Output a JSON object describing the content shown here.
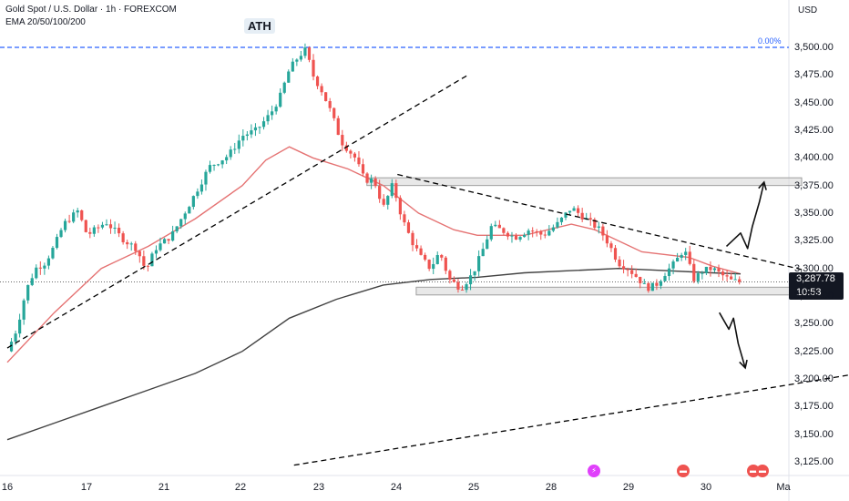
{
  "header": {
    "title": "Gold Spot / U.S. Dollar · 1h · FOREXCOM",
    "indicator": "EMA 20/50/100/200"
  },
  "price_axis": {
    "currency": "USD",
    "last_price": "3,287.78",
    "countdown": "10:53",
    "pct_label": "0.00%"
  },
  "annotations": {
    "ath_label": "ATH"
  },
  "colors": {
    "bull": "#26a69a",
    "bear": "#ef5350",
    "ema_short": "#e57373",
    "ema_long": "#424242",
    "ath_line": "#2962ff",
    "zone": "#d8d8d8",
    "trendline": "#000000"
  },
  "chart_data": {
    "type": "candlestick",
    "symbol": "XAUUSD",
    "timeframe": "1h",
    "ylim": [
      3115,
      3530
    ],
    "yticks": [
      3500,
      3475,
      3450,
      3425,
      3400,
      3375,
      3350,
      3325,
      3300,
      3275,
      3250,
      3225,
      3200,
      3175,
      3150,
      3125
    ],
    "ytick_labels": [
      "3,500.00",
      "3,475.00",
      "3,450.00",
      "3,425.00",
      "3,400.00",
      "3,375.00",
      "3,350.00",
      "3,325.00",
      "3,300.00",
      "3,275.00",
      "3,250.00",
      "3,225.00",
      "3,200.00",
      "3,175.00",
      "3,150.00",
      "3,125.00"
    ],
    "xtick_labels": [
      "16",
      "17",
      "21",
      "22",
      "23",
      "24",
      "25",
      "28",
      "29",
      "30",
      "Ma"
    ],
    "ath_level": 3500,
    "last_price": 3287.78,
    "price_path": [
      [
        0.0,
        3225
      ],
      [
        0.04,
        3245
      ],
      [
        0.08,
        3280
      ],
      [
        0.12,
        3300
      ],
      [
        0.16,
        3305
      ],
      [
        0.2,
        3320
      ],
      [
        0.24,
        3340
      ],
      [
        0.3,
        3352
      ],
      [
        0.34,
        3330
      ],
      [
        0.42,
        3342
      ],
      [
        0.5,
        3325
      ],
      [
        0.55,
        3318
      ],
      [
        0.59,
        3298
      ],
      [
        0.63,
        3318
      ],
      [
        0.7,
        3330
      ],
      [
        0.78,
        3360
      ],
      [
        0.86,
        3392
      ],
      [
        0.94,
        3402
      ],
      [
        1.0,
        3420
      ],
      [
        1.06,
        3425
      ],
      [
        1.12,
        3440
      ],
      [
        1.16,
        3455
      ],
      [
        1.2,
        3480
      ],
      [
        1.24,
        3492
      ],
      [
        1.27,
        3498
      ],
      [
        1.3,
        3475
      ],
      [
        1.34,
        3460
      ],
      [
        1.38,
        3440
      ],
      [
        1.42,
        3415
      ],
      [
        1.48,
        3400
      ],
      [
        1.52,
        3380
      ],
      [
        1.56,
        3380
      ],
      [
        1.6,
        3355
      ],
      [
        1.64,
        3376
      ],
      [
        1.68,
        3345
      ],
      [
        1.72,
        3325
      ],
      [
        1.76,
        3310
      ],
      [
        1.8,
        3300
      ],
      [
        1.84,
        3315
      ],
      [
        1.88,
        3290
      ],
      [
        1.93,
        3282
      ],
      [
        1.98,
        3295
      ],
      [
        2.02,
        3315
      ],
      [
        2.06,
        3338
      ],
      [
        2.1,
        3335
      ],
      [
        2.16,
        3328
      ],
      [
        2.22,
        3335
      ],
      [
        2.28,
        3330
      ],
      [
        2.34,
        3340
      ],
      [
        2.4,
        3355
      ],
      [
        2.46,
        3345
      ],
      [
        2.52,
        3335
      ],
      [
        2.56,
        3322
      ],
      [
        2.6,
        3305
      ],
      [
        2.64,
        3300
      ],
      [
        2.68,
        3292
      ],
      [
        2.72,
        3282
      ],
      [
        2.76,
        3285
      ],
      [
        2.8,
        3296
      ],
      [
        2.84,
        3305
      ],
      [
        2.88,
        3318
      ],
      [
        2.92,
        3290
      ],
      [
        2.96,
        3298
      ],
      [
        3.0,
        3300
      ],
      [
        3.04,
        3294
      ],
      [
        3.08,
        3289
      ],
      [
        3.12,
        3287.78
      ]
    ],
    "series": [
      {
        "name": "EMA 20",
        "values": [
          [
            0.0,
            3215
          ],
          [
            0.2,
            3260
          ],
          [
            0.4,
            3300
          ],
          [
            0.6,
            3320
          ],
          [
            0.8,
            3345
          ],
          [
            1.0,
            3375
          ],
          [
            1.1,
            3398
          ],
          [
            1.2,
            3410
          ],
          [
            1.3,
            3400
          ],
          [
            1.45,
            3390
          ],
          [
            1.6,
            3375
          ],
          [
            1.75,
            3350
          ],
          [
            1.9,
            3335
          ],
          [
            2.0,
            3330
          ],
          [
            2.2,
            3330
          ],
          [
            2.4,
            3340
          ],
          [
            2.5,
            3335
          ],
          [
            2.7,
            3315
          ],
          [
            2.9,
            3310
          ],
          [
            3.0,
            3302
          ],
          [
            3.12,
            3295
          ]
        ]
      },
      {
        "name": "EMA 200",
        "values": [
          [
            0.0,
            3145
          ],
          [
            0.2,
            3160
          ],
          [
            0.4,
            3175
          ],
          [
            0.6,
            3190
          ],
          [
            0.8,
            3205
          ],
          [
            1.0,
            3225
          ],
          [
            1.2,
            3255
          ],
          [
            1.4,
            3272
          ],
          [
            1.6,
            3285
          ],
          [
            1.8,
            3290
          ],
          [
            2.0,
            3292
          ],
          [
            2.2,
            3296
          ],
          [
            2.4,
            3298
          ],
          [
            2.6,
            3300
          ],
          [
            2.8,
            3298
          ],
          [
            3.0,
            3296
          ],
          [
            3.12,
            3295
          ]
        ]
      }
    ],
    "zones": [
      {
        "x0": 1.53,
        "x1": 3.38,
        "y0": 3375,
        "y1": 3382
      },
      {
        "x0": 1.74,
        "x1": 3.38,
        "y0": 3276,
        "y1": 3283
      }
    ],
    "trendlines": [
      {
        "x0": 0.0,
        "y0": 3228,
        "x1": 1.96,
        "y1": 3475,
        "dashed": true
      },
      {
        "x0": 1.66,
        "y0": 3385,
        "x1": 3.38,
        "y1": 3299,
        "dashed": true
      },
      {
        "x0": 1.22,
        "y0": 3122,
        "x1": 4.0,
        "y1": 3218,
        "dashed": true
      }
    ],
    "arrows": [
      {
        "points": [
          [
            3.06,
            3320
          ],
          [
            3.12,
            3332
          ],
          [
            3.15,
            3318
          ],
          [
            3.17,
            3338
          ],
          [
            3.2,
            3360
          ],
          [
            3.22,
            3378
          ]
        ]
      },
      {
        "points": [
          [
            3.03,
            3260
          ],
          [
            3.07,
            3245
          ],
          [
            3.09,
            3255
          ],
          [
            3.11,
            3232
          ],
          [
            3.14,
            3210
          ]
        ]
      }
    ]
  }
}
